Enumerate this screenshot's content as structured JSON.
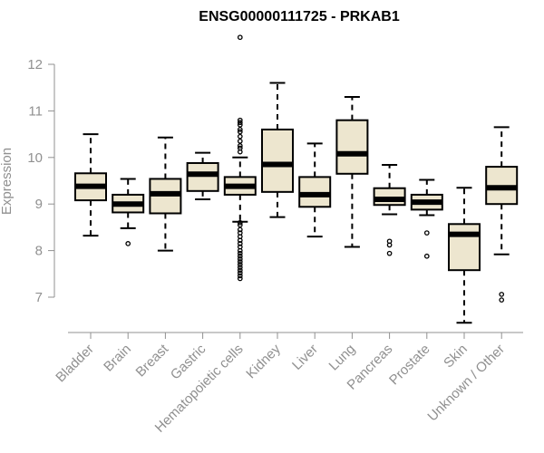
{
  "chart_data": {
    "type": "boxplot",
    "title": "ENSG00000111725 - PRKAB1",
    "xlabel": "",
    "ylabel": "Expression",
    "ylim": [
      6.6,
      12.5
    ],
    "yticks": [
      7,
      8,
      9,
      10,
      11,
      12
    ],
    "box_color": "#ede6cf",
    "axis_color": "#909090",
    "categories": [
      "Bladder",
      "Brain",
      "Breast",
      "Gastric",
      "Hematopoietic cells",
      "Kidney",
      "Liver",
      "Lung",
      "Pancreas",
      "Prostate",
      "Skin",
      "Unknown / Other"
    ],
    "boxes": [
      {
        "min": 8.32,
        "q1": 9.08,
        "median": 9.38,
        "q3": 9.66,
        "max": 10.5,
        "outliers": []
      },
      {
        "min": 8.48,
        "q1": 8.82,
        "median": 9.0,
        "q3": 9.2,
        "max": 9.54,
        "outliers": [
          8.15
        ]
      },
      {
        "min": 8.0,
        "q1": 8.8,
        "median": 9.22,
        "q3": 9.54,
        "max": 10.43,
        "outliers": []
      },
      {
        "min": 9.1,
        "q1": 9.28,
        "median": 9.64,
        "q3": 9.88,
        "max": 10.1,
        "outliers": []
      },
      {
        "min": 8.62,
        "q1": 9.2,
        "median": 9.38,
        "q3": 9.58,
        "max": 10.0,
        "outliers": [
          12.58,
          10.8,
          10.75,
          10.7,
          10.6,
          10.55,
          10.45,
          10.35,
          10.25,
          10.2,
          10.12,
          8.6,
          8.55,
          8.45,
          8.38,
          8.3,
          8.22,
          8.15,
          8.08,
          8.0,
          7.94,
          7.88,
          7.82,
          7.76,
          7.7,
          7.64,
          7.58,
          7.52,
          7.46,
          7.4
        ]
      },
      {
        "min": 8.72,
        "q1": 9.26,
        "median": 9.85,
        "q3": 10.6,
        "max": 11.6,
        "outliers": []
      },
      {
        "min": 8.3,
        "q1": 8.94,
        "median": 9.2,
        "q3": 9.58,
        "max": 10.3,
        "outliers": []
      },
      {
        "min": 8.08,
        "q1": 9.65,
        "median": 10.08,
        "q3": 10.8,
        "max": 11.3,
        "outliers": []
      },
      {
        "min": 8.78,
        "q1": 8.98,
        "median": 9.1,
        "q3": 9.34,
        "max": 9.84,
        "outliers": [
          8.2,
          8.12,
          7.94
        ]
      },
      {
        "min": 8.76,
        "q1": 8.88,
        "median": 9.04,
        "q3": 9.2,
        "max": 9.52,
        "outliers": [
          8.38,
          7.88
        ]
      },
      {
        "min": 6.45,
        "q1": 7.58,
        "median": 8.35,
        "q3": 8.57,
        "max": 9.35,
        "outliers": []
      },
      {
        "min": 7.92,
        "q1": 9.0,
        "median": 9.35,
        "q3": 9.8,
        "max": 10.65,
        "outliers": [
          7.06,
          6.94
        ]
      }
    ]
  }
}
